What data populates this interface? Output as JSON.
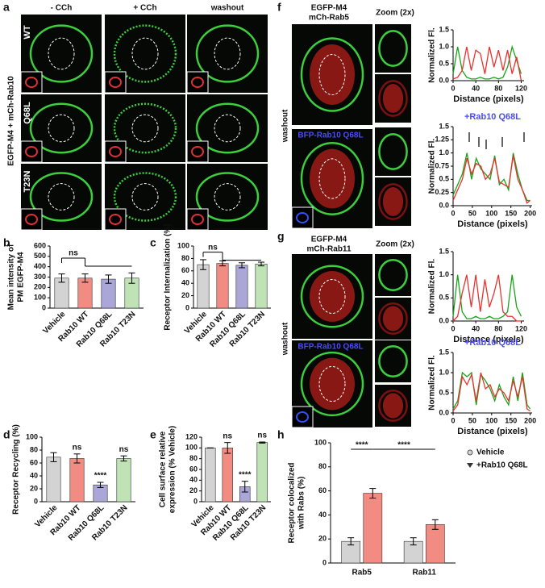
{
  "figure": {
    "panels": [
      "a",
      "b",
      "c",
      "d",
      "e",
      "f",
      "g",
      "h"
    ],
    "a": {
      "columns": [
        "- CCh",
        "+ CCh",
        "washout"
      ],
      "rows": [
        "WT",
        "Q68L",
        "T23N"
      ],
      "side_label": "EGFP-M4 + mCh-Rab10"
    },
    "f": {
      "labels": [
        "EGFP-M4",
        "mCh-Rab5"
      ],
      "zoom": "Zoom (2x)",
      "side_label": "washout",
      "overlay": "BFP-Rab10 Q68L"
    },
    "g": {
      "labels": [
        "EGFP-M4",
        "mCh-Rab11"
      ],
      "zoom": "Zoom (2x)",
      "side_label": "washout",
      "overlay": "BFP-Rab10 Q68L"
    }
  },
  "chart_data": [
    {
      "type": "bar",
      "ylabel": [
        "Mean intensity of",
        "PM EGFP-M4"
      ],
      "categories": [
        "Vehicle",
        "Rab10 WT",
        "Rab10 Q68L",
        "Rab10 T23N"
      ],
      "values": [
        290,
        290,
        280,
        290
      ],
      "errors": [
        40,
        40,
        40,
        50
      ],
      "colors": [
        "#d3d3d3",
        "#f28b82",
        "#aaa6d8",
        "#bfe3b4"
      ],
      "ylim": [
        0,
        600
      ],
      "yticks": [
        0,
        100,
        200,
        300,
        400,
        500,
        600
      ],
      "annotation": "ns"
    },
    {
      "type": "bar",
      "ylabel": "Receptor Internalization (%)",
      "categories": [
        "Vehicle",
        "Rab10 WT",
        "Rab10 Q68L",
        "Rab10 T23N"
      ],
      "values": [
        70,
        72,
        69,
        71
      ],
      "errors": [
        8,
        4,
        4,
        3
      ],
      "colors": [
        "#d3d3d3",
        "#f28b82",
        "#aaa6d8",
        "#bfe3b4"
      ],
      "ylim": [
        0,
        100
      ],
      "yticks": [
        0,
        20,
        40,
        60,
        80,
        100
      ],
      "annotation": "ns"
    },
    {
      "type": "bar",
      "ylabel": "Receptor Recycling (%)",
      "categories": [
        "Vehicle",
        "Rab10 WT",
        "Rab10 Q68L",
        "Rab10 T23N"
      ],
      "values": [
        69,
        67,
        26,
        67
      ],
      "errors": [
        7,
        7,
        4,
        4
      ],
      "colors": [
        "#d3d3d3",
        "#f28b82",
        "#aaa6d8",
        "#bfe3b4"
      ],
      "ylim": [
        0,
        100
      ],
      "yticks": [
        0,
        20,
        40,
        60,
        80,
        100
      ],
      "annotations": [
        null,
        "ns",
        "****",
        "ns"
      ]
    },
    {
      "type": "bar",
      "ylabel": [
        "Cell surface relative",
        "expression (% Vehicle)"
      ],
      "categories": [
        "Vehicle",
        "Rab10 WT",
        "Rab10 Q68L",
        "Rab10 T23N"
      ],
      "values": [
        100,
        100,
        28,
        110
      ],
      "errors": [
        0,
        10,
        10,
        1
      ],
      "colors": [
        "#d3d3d3",
        "#f28b82",
        "#aaa6d8",
        "#bfe3b4"
      ],
      "ylim": [
        0,
        120
      ],
      "yticks": [
        0,
        20,
        40,
        60,
        80,
        100,
        120
      ],
      "annotations": [
        null,
        "ns",
        "****",
        "ns"
      ]
    },
    {
      "type": "bar",
      "ylabel": [
        "Receptor colocalized",
        "with Rabs (%)"
      ],
      "categories": [
        "Rab5",
        "Rab11"
      ],
      "series": [
        {
          "name": "Vehicle",
          "color": "#d3d3d3",
          "values": [
            18,
            18
          ],
          "errors": [
            3,
            3
          ]
        },
        {
          "name": "+Rab10 Q68L",
          "color": "#f28b82",
          "values": [
            58,
            32
          ],
          "errors": [
            4,
            4
          ]
        }
      ],
      "ylim": [
        0,
        100
      ],
      "yticks": [
        0,
        20,
        40,
        60,
        80,
        100
      ],
      "annotations": [
        "****",
        "****"
      ]
    },
    {
      "type": "line",
      "xlabel": "Distance (pixels)",
      "ylabel": "Normalized Fl.",
      "x": [
        0,
        8,
        16,
        24,
        32,
        40,
        48,
        56,
        64,
        72,
        80,
        88,
        96,
        104,
        112,
        120
      ],
      "series": [
        {
          "color": "#1aa31a",
          "values": [
            0.2,
            1.0,
            0.3,
            0.1,
            0.05,
            0.05,
            0.1,
            0.05,
            0.05,
            0.1,
            0.05,
            0.1,
            0.4,
            1.0,
            0.6,
            0.2
          ]
        },
        {
          "color": "#e8322e",
          "values": [
            0.05,
            0.1,
            0.3,
            1.0,
            0.3,
            0.9,
            0.8,
            0.2,
            1.0,
            0.4,
            0.9,
            0.3,
            0.9,
            0.2,
            0.7,
            0.0
          ]
        }
      ],
      "xlim": [
        0,
        125
      ],
      "xticks": [
        0,
        40,
        80,
        120
      ],
      "ylim": [
        0,
        1.5
      ],
      "yticks": [
        {
          "value": 0,
          "label": "0.0"
        },
        0.5,
        {
          "value": 1,
          "label": "1.0"
        },
        1.5
      ]
    },
    {
      "type": "line",
      "xlabel": "Distance (pixels)",
      "ylabel": "Normalized Fl.",
      "annotation": "+Rab10 Q68L",
      "x": [
        0,
        12,
        24,
        36,
        48,
        60,
        72,
        84,
        96,
        108,
        120,
        132,
        144,
        156,
        168,
        180,
        192,
        200
      ],
      "series": [
        {
          "color": "#1aa31a",
          "values": [
            0.2,
            0.4,
            0.6,
            1.0,
            0.5,
            0.9,
            0.7,
            0.6,
            0.5,
            0.95,
            0.4,
            0.5,
            0.3,
            1.0,
            0.6,
            0.3,
            0.1,
            0.1
          ]
        },
        {
          "color": "#e8322e",
          "values": [
            0.1,
            0.3,
            0.5,
            0.9,
            0.6,
            0.8,
            0.75,
            0.5,
            0.6,
            0.9,
            0.45,
            0.4,
            0.35,
            0.95,
            0.5,
            0.3,
            0.05,
            0.1
          ]
        }
      ],
      "xlim": [
        0,
        205
      ],
      "xticks": [
        0,
        50,
        100,
        150,
        200
      ],
      "ylim": [
        0,
        1.5
      ],
      "yticks": [
        {
          "value": 0,
          "label": "0.0"
        },
        0.25,
        0.5,
        0.75,
        {
          "value": 1,
          "label": "1.0"
        },
        1.25,
        1.5
      ]
    },
    {
      "type": "line",
      "xlabel": "Distance (pixels)",
      "ylabel": "Normalized Fl.",
      "x": [
        0,
        8,
        16,
        24,
        32,
        40,
        48,
        56,
        64,
        72,
        80,
        88,
        96,
        104,
        112,
        120
      ],
      "series": [
        {
          "color": "#1aa31a",
          "values": [
            0.1,
            1.0,
            0.2,
            0.05,
            0.05,
            0.1,
            0.05,
            0.05,
            0.1,
            0.05,
            0.05,
            0.1,
            0.2,
            1.0,
            0.3,
            0.1
          ]
        },
        {
          "color": "#e8322e",
          "values": [
            0.0,
            0.1,
            0.6,
            1.0,
            0.3,
            1.0,
            0.2,
            0.9,
            0.3,
            0.6,
            1.0,
            0.2,
            0.1,
            0.1,
            0.0,
            0.0
          ]
        }
      ],
      "xlim": [
        0,
        125
      ],
      "xticks": [
        0,
        40,
        80,
        120
      ],
      "ylim": [
        0,
        1.5
      ],
      "yticks": [
        {
          "value": 0,
          "label": "0.0"
        },
        0.5,
        {
          "value": 1,
          "label": "1.0"
        },
        1.5
      ]
    },
    {
      "type": "line",
      "xlabel": "Distance (pixels)",
      "ylabel": "Normalized Fl.",
      "annotation": "+Rab10 Q68L",
      "x": [
        0,
        12,
        24,
        36,
        48,
        60,
        72,
        84,
        96,
        108,
        120,
        132,
        144,
        156,
        168,
        180,
        192,
        200
      ],
      "series": [
        {
          "color": "#1aa31a",
          "values": [
            0.1,
            0.3,
            1.0,
            0.9,
            1.0,
            0.2,
            0.95,
            0.8,
            0.6,
            0.3,
            0.7,
            0.4,
            0.2,
            0.9,
            0.3,
            1.0,
            0.2,
            0.1
          ]
        },
        {
          "color": "#e8322e",
          "values": [
            0.05,
            0.2,
            0.9,
            0.7,
            0.95,
            0.3,
            1.0,
            0.6,
            0.7,
            0.4,
            0.6,
            0.5,
            0.3,
            0.8,
            0.4,
            0.9,
            0.1,
            0.05
          ]
        }
      ],
      "xlim": [
        0,
        205
      ],
      "xticks": [
        0,
        50,
        100,
        150,
        200
      ],
      "ylim": [
        0,
        1.5
      ],
      "yticks": [
        {
          "value": 0,
          "label": "0.0"
        },
        0.5,
        {
          "value": 1,
          "label": "1.0"
        },
        1.5
      ]
    }
  ]
}
